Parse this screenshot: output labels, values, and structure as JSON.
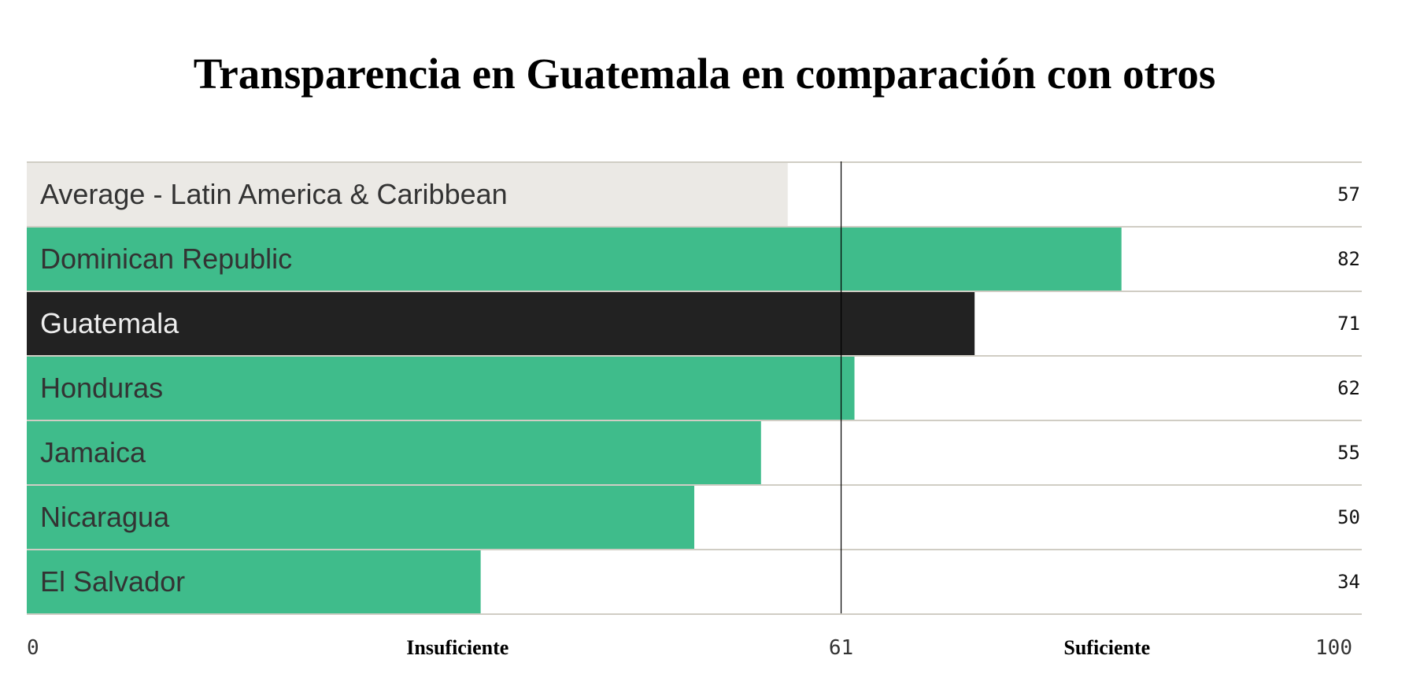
{
  "chart_data": {
    "type": "bar",
    "orientation": "horizontal",
    "title": "Transparencia en Guatemala en comparación con otros",
    "categories": [
      "Average - Latin America & Caribbean",
      "Dominican Republic",
      "Guatemala",
      "Honduras",
      "Jamaica",
      "Nicaragua",
      "El Salvador"
    ],
    "values": [
      57,
      82,
      71,
      62,
      55,
      50,
      34
    ],
    "highlight": [
      "average",
      "normal",
      "selected",
      "normal",
      "normal",
      "normal",
      "normal"
    ],
    "xlim": [
      0,
      100
    ],
    "threshold": 61,
    "tick_labels": [
      "0",
      "61",
      "100"
    ],
    "zone_labels": [
      "Insuficiente",
      "Suficiente"
    ],
    "colors": {
      "average": "#ebe9e5",
      "normal": "#3fbc8b",
      "selected": "#222222",
      "separator": "#d0cdc4",
      "threshold": "#000000"
    }
  }
}
